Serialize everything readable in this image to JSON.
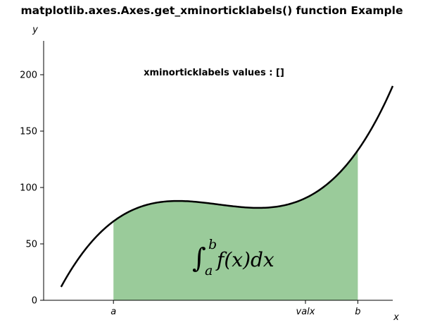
{
  "chart_data": {
    "type": "line",
    "title": "matplotlib.axes.Axes.get_xminorticklabels() function Example",
    "xlabel": "x",
    "ylabel": "y",
    "annotation": "xminorticklabels values : []",
    "formula": {
      "integral_sign": "∫",
      "upper_limit": "b",
      "lower_limit": "a",
      "integrand": "f(x)dx"
    },
    "xlim": [
      0,
      10
    ],
    "ylim": [
      0,
      230
    ],
    "x_ticks": [
      {
        "value": 2,
        "label": "a"
      },
      {
        "value": 7.5,
        "label": "valx"
      },
      {
        "value": 9,
        "label": "b"
      }
    ],
    "y_ticks": [
      {
        "value": 0,
        "label": "0"
      },
      {
        "value": 50,
        "label": "50"
      },
      {
        "value": 100,
        "label": "100"
      },
      {
        "value": 150,
        "label": "150"
      },
      {
        "value": 200,
        "label": "200"
      }
    ],
    "series": [
      {
        "kind": "curve",
        "function": "(x - 3) * (x - 5) * (x - 7) + 85",
        "x_range": [
          0.5,
          10
        ],
        "color": "#000000"
      }
    ],
    "shaded_region": {
      "x_from": 2,
      "x_to": 9,
      "color": "#9acb9a"
    },
    "spines": {
      "top": false,
      "right": false
    },
    "grid": false
  }
}
